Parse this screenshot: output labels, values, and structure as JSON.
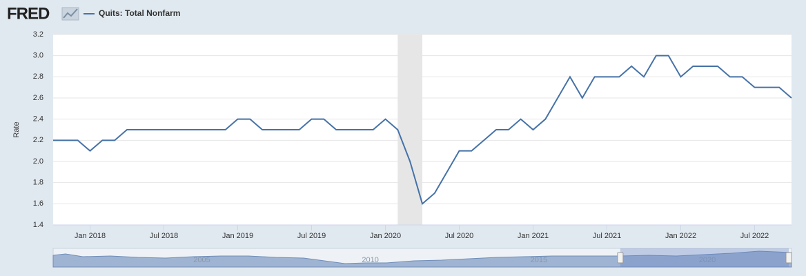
{
  "logo": "FRED",
  "chart_data": {
    "type": "line",
    "y_label": "Rate",
    "x": [
      "2017-10",
      "2017-11",
      "2017-12",
      "2018-01",
      "2018-02",
      "2018-03",
      "2018-04",
      "2018-05",
      "2018-06",
      "2018-07",
      "2018-08",
      "2018-09",
      "2018-10",
      "2018-11",
      "2018-12",
      "2019-01",
      "2019-02",
      "2019-03",
      "2019-04",
      "2019-05",
      "2019-06",
      "2019-07",
      "2019-08",
      "2019-09",
      "2019-10",
      "2019-11",
      "2019-12",
      "2020-01",
      "2020-02",
      "2020-03",
      "2020-04",
      "2020-05",
      "2020-06",
      "2020-07",
      "2020-08",
      "2020-09",
      "2020-10",
      "2020-11",
      "2020-12",
      "2021-01",
      "2021-02",
      "2021-03",
      "2021-04",
      "2021-05",
      "2021-06",
      "2021-07",
      "2021-08",
      "2021-09",
      "2021-10",
      "2021-11",
      "2021-12",
      "2022-01",
      "2022-02",
      "2022-03",
      "2022-04",
      "2022-05",
      "2022-06",
      "2022-07",
      "2022-08",
      "2022-09",
      "2022-10"
    ],
    "series": [
      {
        "name": "Quits: Total Nonfarm",
        "color": "#4572a7",
        "values": [
          2.2,
          2.2,
          2.2,
          2.1,
          2.2,
          2.2,
          2.3,
          2.3,
          2.3,
          2.3,
          2.3,
          2.3,
          2.3,
          2.3,
          2.3,
          2.4,
          2.4,
          2.3,
          2.3,
          2.3,
          2.3,
          2.4,
          2.4,
          2.3,
          2.3,
          2.3,
          2.3,
          2.4,
          2.3,
          2.0,
          1.6,
          1.7,
          1.9,
          2.1,
          2.1,
          2.2,
          2.3,
          2.3,
          2.4,
          2.3,
          2.4,
          2.6,
          2.8,
          2.6,
          2.8,
          2.8,
          2.8,
          2.9,
          2.8,
          3.0,
          3.0,
          2.8,
          2.9,
          2.9,
          2.9,
          2.8,
          2.8,
          2.7,
          2.7,
          2.7,
          2.6
        ]
      }
    ],
    "xlim": [
      "2017-10",
      "2022-10"
    ],
    "xticks": [
      {
        "value": "2018-01",
        "label": "Jan 2018"
      },
      {
        "value": "2018-07",
        "label": "Jul 2018"
      },
      {
        "value": "2019-01",
        "label": "Jan 2019"
      },
      {
        "value": "2019-07",
        "label": "Jul 2019"
      },
      {
        "value": "2020-01",
        "label": "Jan 2020"
      },
      {
        "value": "2020-07",
        "label": "Jul 2020"
      },
      {
        "value": "2021-01",
        "label": "Jan 2021"
      },
      {
        "value": "2021-07",
        "label": "Jul 2021"
      },
      {
        "value": "2022-01",
        "label": "Jan 2022"
      },
      {
        "value": "2022-07",
        "label": "Jul 2022"
      }
    ],
    "ylim": [
      1.4,
      3.2
    ],
    "yticks": [
      1.4,
      1.6,
      1.8,
      {
        "value": 2,
        "label": "2.0"
      },
      2.2,
      2.4,
      2.6,
      2.8,
      {
        "value": 3,
        "label": "3.0"
      },
      3.2
    ],
    "grid": true,
    "recessions": [
      {
        "start": "2020-02",
        "end": "2020-04"
      }
    ],
    "navigator": {
      "xlim": [
        2000.92,
        2022.83
      ],
      "xticks": [
        2005,
        2010,
        2015,
        2020
      ]
    }
  }
}
